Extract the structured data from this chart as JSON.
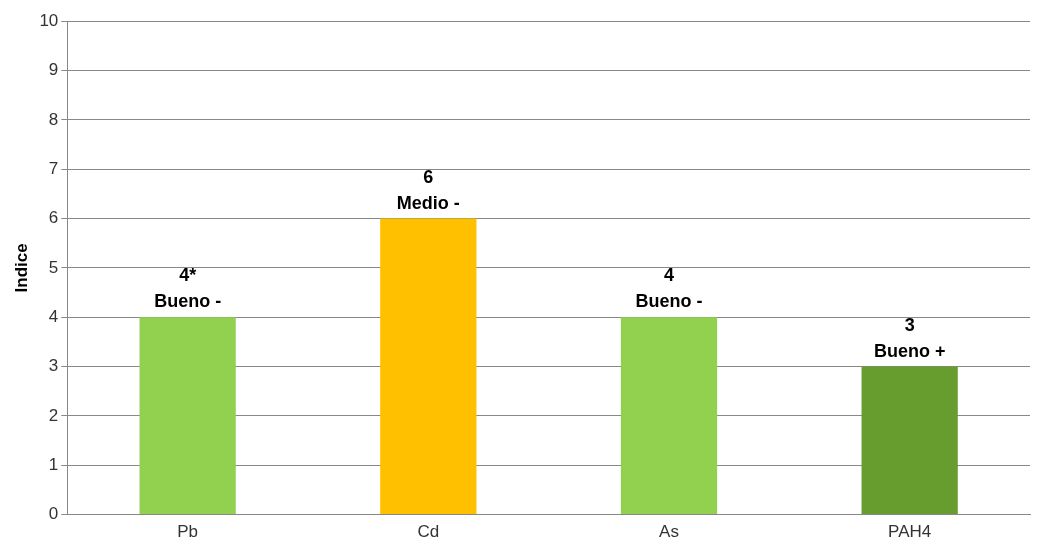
{
  "chart_data": {
    "type": "bar",
    "ylabel": "Indice",
    "categories": [
      "Pb",
      "Cd",
      "As",
      "PAH4"
    ],
    "values": [
      4,
      6,
      4,
      3
    ],
    "colors": [
      "#92d050",
      "#ffc000",
      "#92d050",
      "#669d2e"
    ],
    "value_labels": [
      "4*",
      "6",
      "4",
      "3"
    ],
    "annotations": [
      {
        "text": "Bueno -",
        "x": "Pb",
        "y": 4
      },
      {
        "text": "Medio -",
        "x": "Cd",
        "y": 6
      },
      {
        "text": "Bueno -",
        "x": "As",
        "y": 4
      },
      {
        "text": "Bueno +",
        "x": "PAH4",
        "y": 3
      }
    ],
    "ylim": [
      0,
      10
    ],
    "yticks": [
      0,
      1,
      2,
      3,
      4,
      5,
      6,
      7,
      8,
      9,
      10
    ],
    "grid": "y",
    "legend": false
  }
}
